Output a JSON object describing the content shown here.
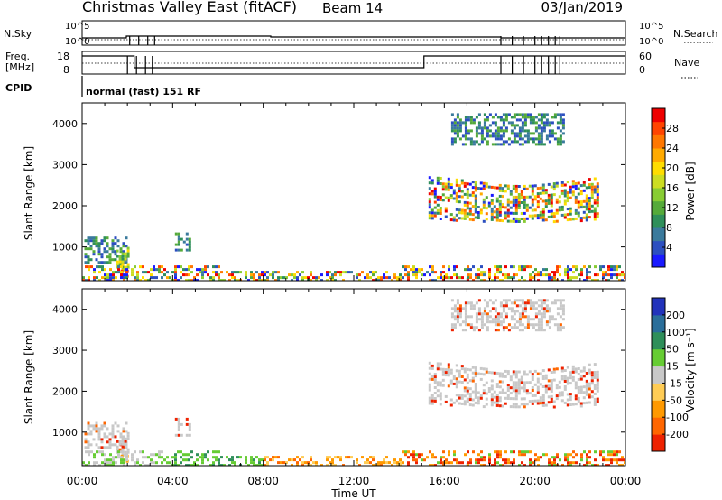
{
  "header": {
    "station": "Christmas Valley East (fitACF)",
    "beam": "Beam 14",
    "date": "03/Jan/2019"
  },
  "params_panel": {
    "left_labels": [
      "N.Sky",
      "Freq.",
      "[MHz]",
      "CPID"
    ],
    "right_labels": [
      "N.Search",
      "Nave"
    ],
    "nsky_ticks": [
      "10^5",
      "10^0"
    ],
    "nsearch_ticks": [
      "10^5",
      "10^0"
    ],
    "freq_ticks": [
      "18",
      "8"
    ],
    "nave_ticks": [
      "60",
      "0"
    ],
    "cpid_text": "normal (fast) 151 RF"
  },
  "chart_data": [
    {
      "type": "heatmap",
      "name": "power",
      "ylabel": "Slant Range [km]",
      "xlabel": "",
      "yticks": [
        "1000",
        "2000",
        "3000",
        "4000"
      ],
      "ylim": [
        180,
        4500
      ],
      "xlim": [
        0,
        24
      ],
      "colorbar": {
        "label": "Power [dB]",
        "ticks": [
          "4",
          "8",
          "12",
          "16",
          "20",
          "24",
          "28"
        ],
        "range": [
          0,
          32
        ],
        "colors": [
          "#1a1aff",
          "#2c4fc0",
          "#3a7a9c",
          "#2f8f5a",
          "#55aa3a",
          "#88cc33",
          "#ccdd22",
          "#ffdd00",
          "#ffaa00",
          "#ff7700",
          "#ff4400",
          "#ee0000"
        ]
      },
      "regions": [
        {
          "t": [
            0.1,
            2.0
          ],
          "range": [
            600,
            1250
          ],
          "level": "low"
        },
        {
          "t": [
            1.5,
            2.0
          ],
          "range": [
            450,
            1000
          ],
          "level": "mid"
        },
        {
          "t": [
            1.7,
            2.0
          ],
          "range": [
            200,
            450
          ],
          "level": "high"
        },
        {
          "t": [
            4.1,
            4.8
          ],
          "range": [
            900,
            1350
          ],
          "level": "low"
        },
        {
          "t": [
            0,
            24
          ],
          "range": [
            180,
            550
          ],
          "level": "mixed"
        },
        {
          "t": [
            15.3,
            22.8
          ],
          "range": [
            1500,
            2750
          ],
          "level": "band"
        },
        {
          "t": [
            16.3,
            21.3
          ],
          "range": [
            3500,
            4250
          ],
          "level": "low"
        }
      ]
    },
    {
      "type": "heatmap",
      "name": "velocity",
      "ylabel": "Slant Range [km]",
      "xlabel": "Time UT",
      "yticks": [
        "1000",
        "2000",
        "3000",
        "4000"
      ],
      "xticks": [
        "00:00",
        "04:00",
        "08:00",
        "12:00",
        "16:00",
        "20:00",
        "00:00"
      ],
      "ylim": [
        180,
        4500
      ],
      "xlim": [
        0,
        24
      ],
      "colorbar": {
        "label": "Velocity [m s⁻¹]",
        "ticks": [
          "200",
          "100",
          "50",
          "15",
          "-15",
          "-50",
          "-100",
          "-200"
        ],
        "colors": [
          "#2233bb",
          "#2a6e9a",
          "#2f8f5a",
          "#66cc33",
          "#c8c8c8",
          "#ffcc55",
          "#ff9900",
          "#ff6600",
          "#ee2200"
        ]
      }
    }
  ]
}
